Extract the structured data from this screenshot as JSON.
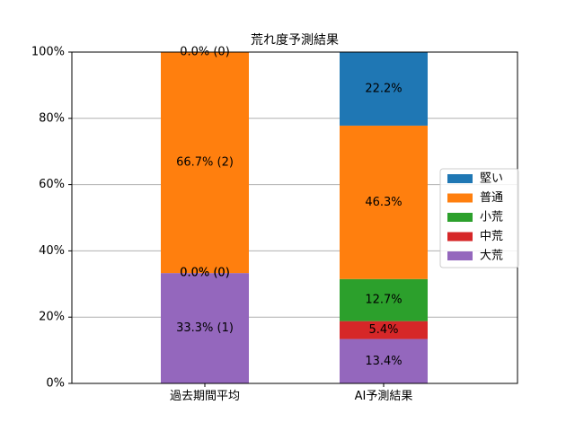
{
  "chart_data": {
    "type": "bar",
    "stacked": true,
    "title": "荒れ度予測結果",
    "categories": [
      "過去期間平均",
      "AI予測結果"
    ],
    "ylim": [
      0,
      100
    ],
    "yticks": [
      "0%",
      "20%",
      "40%",
      "60%",
      "80%",
      "100%"
    ],
    "grid": "horizontal",
    "legend_position": "right",
    "series": [
      {
        "name": "大荒",
        "color": "#9467bd",
        "values": [
          33.3,
          13.4
        ],
        "labels": [
          "33.3% (1)",
          "13.4%"
        ]
      },
      {
        "name": "中荒",
        "color": "#d62728",
        "values": [
          0.0,
          5.4
        ],
        "labels": [
          "0.0% (0)",
          "5.4%"
        ]
      },
      {
        "name": "小荒",
        "color": "#2ca02c",
        "values": [
          0.0,
          12.7
        ],
        "labels": [
          "0.0% (0)",
          "12.7%"
        ]
      },
      {
        "name": "普通",
        "color": "#ff7f0e",
        "values": [
          66.7,
          46.3
        ],
        "labels": [
          "66.7% (2)",
          "46.3%"
        ]
      },
      {
        "name": "堅い",
        "color": "#1f77b4",
        "values": [
          0.0,
          22.2
        ],
        "labels": [
          "0.0% (0)",
          "22.2%"
        ]
      }
    ],
    "legend_order": [
      "堅い",
      "普通",
      "小荒",
      "中荒",
      "大荒"
    ]
  }
}
